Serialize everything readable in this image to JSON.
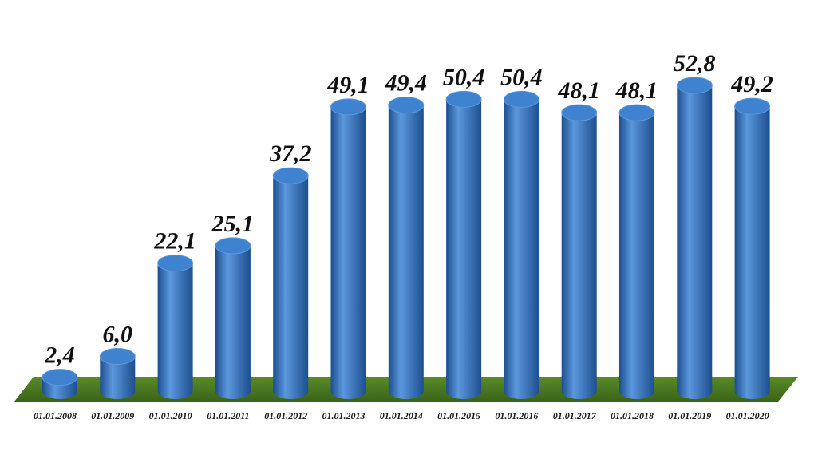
{
  "chart_data": {
    "type": "bar",
    "title": "",
    "xlabel": "",
    "ylabel": "",
    "categories": [
      "01.01.2008",
      "01.01.2009",
      "01.01.2010",
      "01.01.2011",
      "01.01.2012",
      "01.01.2013",
      "01.01.2014",
      "01.01.2015",
      "01.01.2016",
      "01.01.2017",
      "01.01.2018",
      "01.01.2019",
      "01.01.2020"
    ],
    "values": [
      2.4,
      6.0,
      22.1,
      25.1,
      37.2,
      49.1,
      49.4,
      50.4,
      50.4,
      48.1,
      48.1,
      52.8,
      49.2
    ],
    "value_labels": [
      "2,4",
      "6,0",
      "22,1",
      "25,1",
      "37,2",
      "49,1",
      "49,4",
      "50,4",
      "50,4",
      "48,1",
      "48,1",
      "52,8",
      "49,2"
    ],
    "ylim": [
      0,
      55
    ],
    "grid": false,
    "legend": "none",
    "shape": "cylinder",
    "colors": {
      "bar": "#2f6db8",
      "bar_light": "#5b97dd",
      "bar_dark": "#1d4f8f",
      "bar_top": "#3f82cf",
      "floor": "#5a8a2a",
      "floor_dark": "#3a6418"
    }
  }
}
